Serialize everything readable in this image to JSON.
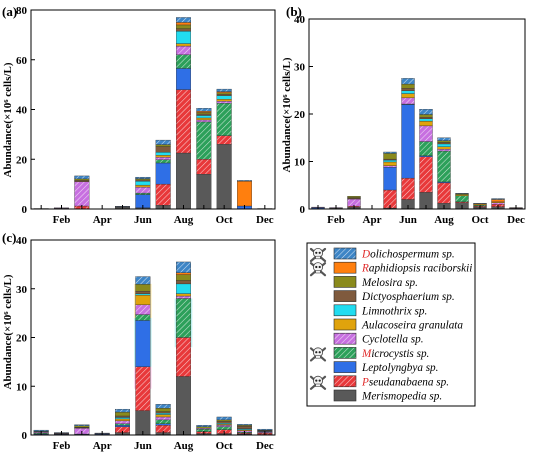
{
  "colors": {
    "Dolichospermum sp.": "#3d85c6",
    "Raphidiopsis raciborskii": "#ff7f0e",
    "Melosira sp.": "#8a8a1c",
    "Dictyosphaerium sp.": "#7f5a3d",
    "Limnothrix sp.": "#21dcf0",
    "Aulacoseira granulata": "#e0a30c",
    "Cyclotella sp.": "#c76fe0",
    "Microcystis sp.": "#2ca05a",
    "Leptolyngbya sp.": "#2f6fe6",
    "Pseudanabaena sp.": "#e8383a",
    "Merismopedia sp.": "#595959"
  },
  "hatched_series": [
    "Dolichospermum sp.",
    "Cyclotella sp.",
    "Microcystis sp.",
    "Pseudanabaena sp."
  ],
  "skull_marked_species": [
    "Dolichospermum sp.",
    "Raphidiopsis raciborskii",
    "Microcystis sp.",
    "Pseudanabaena sp."
  ],
  "legend": {
    "entries": [
      {
        "first": "D",
        "rest": "olichospermum sp."
      },
      {
        "first": "R",
        "rest": "aphidiopsis raciborskii"
      },
      {
        "first": "M",
        "rest": "elosira sp."
      },
      {
        "first": "D",
        "rest": "ictyosphaerium sp."
      },
      {
        "first": "L",
        "rest": "imnothrix sp."
      },
      {
        "first": "A",
        "rest": "ulacoseira granulata"
      },
      {
        "first": "C",
        "rest": "yclotella sp."
      },
      {
        "first": "M",
        "rest": "icrocystis sp."
      },
      {
        "first": "L",
        "rest": "eptolyngbya sp."
      },
      {
        "first": "P",
        "rest": "seudanabaena sp."
      },
      {
        "first": "M",
        "rest": "erismopedia sp."
      }
    ]
  },
  "chart_data": [
    {
      "type": "bar",
      "stacked": true,
      "panel_label": "(a)",
      "ylabel": "Abundance(×10⁶ cells/L)",
      "xlabel": "",
      "ylim": [
        0,
        80
      ],
      "yticks": [
        0,
        20,
        40,
        60,
        80
      ],
      "categories": [
        "Jan",
        "Feb",
        "Mar",
        "Apr",
        "May",
        "Jun",
        "Jul",
        "Aug",
        "Sep",
        "Oct",
        "Nov",
        "Dec"
      ],
      "xtick_labels": [
        "",
        "Feb",
        "",
        "Apr",
        "",
        "Jun",
        "",
        "Aug",
        "",
        "Oct",
        "",
        "Dec"
      ],
      "series": [
        {
          "name": "Merismopedia sp.",
          "values": [
            0,
            0.3,
            0,
            0,
            0.8,
            0.5,
            1.5,
            22.5,
            14,
            26,
            0,
            0
          ]
        },
        {
          "name": "Pseudanabaena sp.",
          "values": [
            0,
            0,
            1.2,
            0,
            0,
            0,
            8.5,
            25.5,
            6,
            3.5,
            0,
            0
          ]
        },
        {
          "name": "Leptolyngbya sp.",
          "values": [
            0,
            0,
            0,
            0,
            0,
            5.3,
            8.5,
            8.5,
            0,
            0,
            1.2,
            0
          ]
        },
        {
          "name": "Microcystis sp.",
          "values": [
            0,
            0,
            0,
            0,
            0,
            0.6,
            1.3,
            5.5,
            15,
            13,
            0,
            0
          ]
        },
        {
          "name": "Cyclotella sp.",
          "values": [
            0.1,
            0.2,
            9.8,
            0,
            0.2,
            2.4,
            1,
            3.5,
            0.8,
            0.8,
            0,
            0
          ]
        },
        {
          "name": "Aulacoseira granulata",
          "values": [
            0,
            0,
            0,
            0,
            0,
            0.8,
            0.8,
            1,
            0.8,
            0.8,
            0,
            0
          ]
        },
        {
          "name": "Limnothrix sp.",
          "values": [
            0,
            0,
            0,
            0,
            0,
            1.6,
            1.2,
            5,
            1,
            1.5,
            0,
            0
          ]
        },
        {
          "name": "Dictyosphaerium sp.",
          "values": [
            0.1,
            0,
            0.5,
            0,
            0,
            0.5,
            2.3,
            1,
            0.6,
            0.5,
            0,
            0.2
          ]
        },
        {
          "name": "Melosira sp.",
          "values": [
            0,
            0,
            0.6,
            0,
            0,
            0.5,
            0.8,
            1.5,
            0.6,
            0.6,
            0,
            0
          ]
        },
        {
          "name": "Raphidiopsis raciborskii",
          "values": [
            0,
            0,
            0,
            0,
            0,
            0,
            0,
            1,
            0.5,
            0.5,
            10,
            0
          ]
        },
        {
          "name": "Dolichospermum sp.",
          "values": [
            0,
            0,
            1.2,
            0,
            0.1,
            0.6,
            1.8,
            2,
            1.2,
            1,
            0.3,
            0
          ]
        }
      ]
    },
    {
      "type": "bar",
      "stacked": true,
      "panel_label": "(b)",
      "ylabel": "Abundance(×10⁶ cells/L)",
      "xlabel": "",
      "ylim": [
        0,
        40
      ],
      "yticks": [
        0,
        10,
        20,
        30,
        40
      ],
      "categories": [
        "Jan",
        "Feb",
        "Mar",
        "Apr",
        "May",
        "Jun",
        "Jul",
        "Aug",
        "Sep",
        "Oct",
        "Nov",
        "Dec"
      ],
      "xtick_labels": [
        "",
        "Feb",
        "",
        "Apr",
        "",
        "Jun",
        "",
        "Aug",
        "",
        "Oct",
        "",
        "Dec"
      ],
      "series": [
        {
          "name": "Merismopedia sp.",
          "values": [
            0.1,
            0.2,
            0.4,
            0,
            0.2,
            2,
            3.5,
            1.2,
            1.3,
            0.4,
            0.5,
            0.1
          ]
        },
        {
          "name": "Pseudanabaena sp.",
          "values": [
            0,
            0,
            0.2,
            0,
            3.8,
            4.5,
            7.5,
            4.3,
            0.2,
            0.2,
            0.5,
            0
          ]
        },
        {
          "name": "Leptolyngbya sp.",
          "values": [
            0.2,
            0,
            0,
            0,
            4.8,
            15.5,
            0.2,
            0.2,
            0,
            0,
            0,
            0
          ]
        },
        {
          "name": "Microcystis sp.",
          "values": [
            0,
            0,
            0,
            0,
            0,
            0.1,
            3,
            6.5,
            1.3,
            0.2,
            0,
            0
          ]
        },
        {
          "name": "Cyclotella sp.",
          "values": [
            0.1,
            0.1,
            1.5,
            0,
            0.3,
            1.3,
            3.3,
            0.4,
            0,
            0,
            0.3,
            0.1
          ]
        },
        {
          "name": "Aulacoseira granulata",
          "values": [
            0,
            0,
            0.1,
            0,
            0.8,
            0.9,
            1,
            0.5,
            0.2,
            0.2,
            0.2,
            0
          ]
        },
        {
          "name": "Limnothrix sp.",
          "values": [
            0,
            0,
            0,
            0,
            0.4,
            0.6,
            0.5,
            0.6,
            0,
            0,
            0,
            0
          ]
        },
        {
          "name": "Dictyosphaerium sp.",
          "values": [
            0,
            0,
            0.2,
            0,
            0.2,
            0.5,
            0.3,
            0.3,
            0,
            0,
            0,
            0.1
          ]
        },
        {
          "name": "Melosira sp.",
          "values": [
            0,
            0,
            0.3,
            0,
            1.2,
            0.9,
            0.6,
            0.4,
            0.2,
            0,
            0,
            0
          ]
        },
        {
          "name": "Raphidiopsis raciborskii",
          "values": [
            0,
            0,
            0,
            0,
            0,
            0,
            0,
            0,
            0,
            0.1,
            0.5,
            0
          ]
        },
        {
          "name": "Dolichospermum sp.",
          "values": [
            0,
            0,
            0,
            0,
            0.3,
            1.2,
            1.1,
            0.6,
            0.1,
            0.1,
            0.2,
            0
          ]
        }
      ]
    },
    {
      "type": "bar",
      "stacked": true,
      "panel_label": "(c)",
      "ylabel": "Abundance(×10⁶ cells/L)",
      "xlabel": "",
      "ylim": [
        0,
        40
      ],
      "yticks": [
        0,
        10,
        20,
        30,
        40
      ],
      "categories": [
        "Jan",
        "Feb",
        "Mar",
        "Apr",
        "May",
        "Jun",
        "Jul",
        "Aug",
        "Sep",
        "Oct",
        "Nov",
        "Dec"
      ],
      "xtick_labels": [
        "",
        "Feb",
        "",
        "Apr",
        "",
        "Jun",
        "",
        "Aug",
        "",
        "Oct",
        "",
        "Dec"
      ],
      "series": [
        {
          "name": "Merismopedia sp.",
          "values": [
            0,
            0.1,
            0.1,
            0,
            0.5,
            5,
            0.5,
            12,
            0.3,
            0.3,
            0.2,
            0.1
          ]
        },
        {
          "name": "Pseudanabaena sp.",
          "values": [
            0,
            0,
            0,
            0,
            1.2,
            9,
            1.5,
            8,
            0.4,
            0.8,
            0.2,
            0.3
          ]
        },
        {
          "name": "Leptolyngbya sp.",
          "values": [
            0.2,
            0.1,
            0.1,
            0.2,
            0.3,
            9.5,
            0.3,
            0,
            0,
            0,
            0,
            0
          ]
        },
        {
          "name": "Microcystis sp.",
          "values": [
            0.2,
            0,
            0,
            0,
            0.3,
            1.2,
            0.8,
            8,
            0.5,
            0.6,
            0.2,
            0.1
          ]
        },
        {
          "name": "Cyclotella sp.",
          "values": [
            0.2,
            0.1,
            1.2,
            0.1,
            0.6,
            2,
            0.6,
            0.5,
            0.2,
            0.3,
            0.3,
            0.2
          ]
        },
        {
          "name": "Aulacoseira granulata",
          "values": [
            0.1,
            0,
            0.1,
            0,
            0.4,
            2,
            0.5,
            0.5,
            0,
            0.2,
            0.2,
            0
          ]
        },
        {
          "name": "Limnothrix sp.",
          "values": [
            0.1,
            0,
            0,
            0,
            0.3,
            0.3,
            0.3,
            2,
            0,
            0.2,
            0.2,
            0.1
          ]
        },
        {
          "name": "Dictyosphaerium sp.",
          "values": [
            0,
            0.1,
            0.1,
            0,
            0.3,
            0.5,
            0.3,
            0.7,
            0,
            0.4,
            0.5,
            0.1
          ]
        },
        {
          "name": "Melosira sp.",
          "values": [
            0,
            0,
            0.3,
            0,
            0.8,
            1.4,
            0.7,
            1.2,
            0.3,
            0.3,
            0.2,
            0.1
          ]
        },
        {
          "name": "Raphidiopsis raciborskii",
          "values": [
            0,
            0,
            0,
            0,
            0,
            0,
            0,
            0.4,
            0,
            0,
            0,
            0
          ]
        },
        {
          "name": "Dolichospermum sp.",
          "values": [
            0.2,
            0.1,
            0.2,
            0.1,
            0.6,
            1.6,
            0.8,
            2.2,
            0.3,
            0.6,
            0.2,
            0.2
          ]
        }
      ],
      "highlight_backgrounds": [
        {
          "category": "Jun",
          "band": [
            9.5,
            14
          ],
          "color": "#ffd6f0"
        },
        {
          "category": "Jun",
          "band": [
            14,
            24
          ],
          "color": "#bfeff0"
        },
        {
          "category": "Jun",
          "band": [
            24,
            31
          ],
          "color": "#ffefb8"
        },
        {
          "category": "Aug",
          "band": [
            18,
            28
          ],
          "color": "#bfeff0"
        }
      ]
    }
  ]
}
